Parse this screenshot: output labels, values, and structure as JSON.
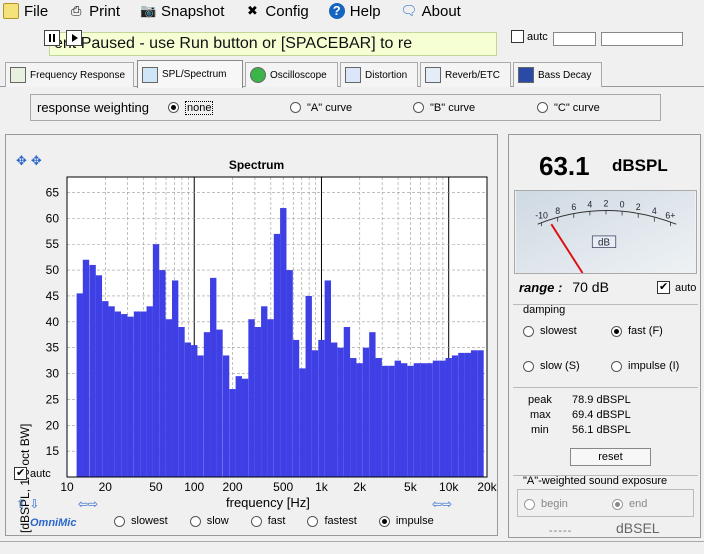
{
  "menu": {
    "file": "File",
    "print": "Print",
    "snapshot": "Snapshot",
    "config": "Config",
    "help": "Help",
    "about": "About"
  },
  "status": {
    "message": "ent Paused - use Run button or [SPACEBAR] to re",
    "autc_label": "autc"
  },
  "tabs": [
    {
      "label": "Frequency Response",
      "icon": "frequency-response-icon"
    },
    {
      "label": "SPL/Spectrum",
      "icon": "spl-meter-icon"
    },
    {
      "label": "Oscilloscope",
      "icon": "oscilloscope-icon"
    },
    {
      "label": "Distortion",
      "icon": "distortion-icon"
    },
    {
      "label": "Reverb/ETC",
      "icon": "reverb-icon"
    },
    {
      "label": "Bass Decay",
      "icon": "bass-decay-icon"
    }
  ],
  "weighting": {
    "label": "response weighting",
    "options": [
      "none",
      "\"A\" curve",
      "\"B\" curve",
      "\"C\" curve"
    ],
    "selected": "none"
  },
  "graph": {
    "autc_label": "autc",
    "averaging_options": [
      "slowest",
      "slow",
      "fast",
      "fastest",
      "impulse"
    ],
    "averaging_selected": "impulse",
    "brand": "OmniMic"
  },
  "chart_data": {
    "type": "bar",
    "title": "Spectrum",
    "xlabel": "frequency [Hz]",
    "ylabel": "[dBSPL, 1/6 oct BW]",
    "x_scale": "log",
    "xlim": [
      10,
      20000
    ],
    "ylim": [
      10,
      68
    ],
    "x_ticks": [
      {
        "value": 10,
        "label": "10"
      },
      {
        "value": 20,
        "label": "20"
      },
      {
        "value": 50,
        "label": "50"
      },
      {
        "value": 100,
        "label": "100"
      },
      {
        "value": 200,
        "label": "200"
      },
      {
        "value": 500,
        "label": "500"
      },
      {
        "value": 1000,
        "label": "1k"
      },
      {
        "value": 2000,
        "label": "2k"
      },
      {
        "value": 5000,
        "label": "5k"
      },
      {
        "value": 10000,
        "label": "10k"
      },
      {
        "value": 20000,
        "label": "20k"
      }
    ],
    "y_ticks": [
      15,
      20,
      25,
      30,
      35,
      40,
      45,
      50,
      55,
      60,
      65
    ],
    "grid": true,
    "bar_color": "#3f3fe6",
    "series": [
      {
        "x": [
          12.6,
          14.1,
          15.9,
          17.8,
          20,
          22.4,
          25.1,
          28.2,
          31.6,
          35.5,
          39.8,
          44.7,
          50.1,
          56.2,
          63.1,
          70.8,
          79.4,
          89.1,
          100,
          112,
          126,
          141,
          158,
          178,
          200,
          224,
          251,
          282,
          316,
          355,
          398,
          447,
          501,
          562,
          631,
          708,
          794,
          891,
          1000,
          1122,
          1259,
          1413,
          1585,
          1778,
          1995,
          2239,
          2512,
          2818,
          3162,
          3548,
          3981,
          4467,
          5012,
          5623,
          6310,
          7079,
          7943,
          8913,
          10000,
          11220,
          12589,
          14125,
          15849,
          17783
        ],
        "values": [
          45.5,
          52,
          51,
          49,
          44,
          43,
          42,
          41.5,
          41,
          42,
          42,
          43,
          55,
          50,
          40.5,
          48,
          39,
          36,
          35.5,
          33.5,
          38,
          48.5,
          38.5,
          33.5,
          27,
          29.5,
          29,
          40.5,
          39,
          43,
          40.5,
          57,
          62,
          50,
          36.5,
          31,
          45,
          34.5,
          36.5,
          48,
          36,
          35,
          39,
          33,
          32,
          35,
          38,
          33,
          31.5,
          31.5,
          32.5,
          32,
          31.5,
          32,
          32,
          32,
          32.5,
          32.5,
          33,
          33.5,
          34,
          34,
          34.5,
          34.5
        ]
      }
    ]
  },
  "meter": {
    "reading": "63.1",
    "unit": "dBSPL",
    "dial_labels": [
      "-10",
      "8",
      "6",
      "4",
      "2",
      "0",
      "2",
      "4",
      "6+"
    ],
    "dial_unit": "dB",
    "range_label": "range :",
    "range_value": "70 dB",
    "range_auto": "auto",
    "damping_title": "damping",
    "damping_options": [
      "slowest",
      "fast (F)",
      "slow (S)",
      "impulse (I)"
    ],
    "damping_selected": "fast (F)",
    "peak_label": "peak",
    "peak_value": "78.9 dBSPL",
    "max_label": "max",
    "max_value": "69.4 dBSPL",
    "min_label": "min",
    "min_value": "56.1 dBSPL",
    "reset": "reset",
    "exposure_title": "\"A\"-weighted sound exposure",
    "exposure_begin": "begin",
    "exposure_end": "end",
    "sel_value": "-----",
    "sel_unit": "dBSEL"
  }
}
